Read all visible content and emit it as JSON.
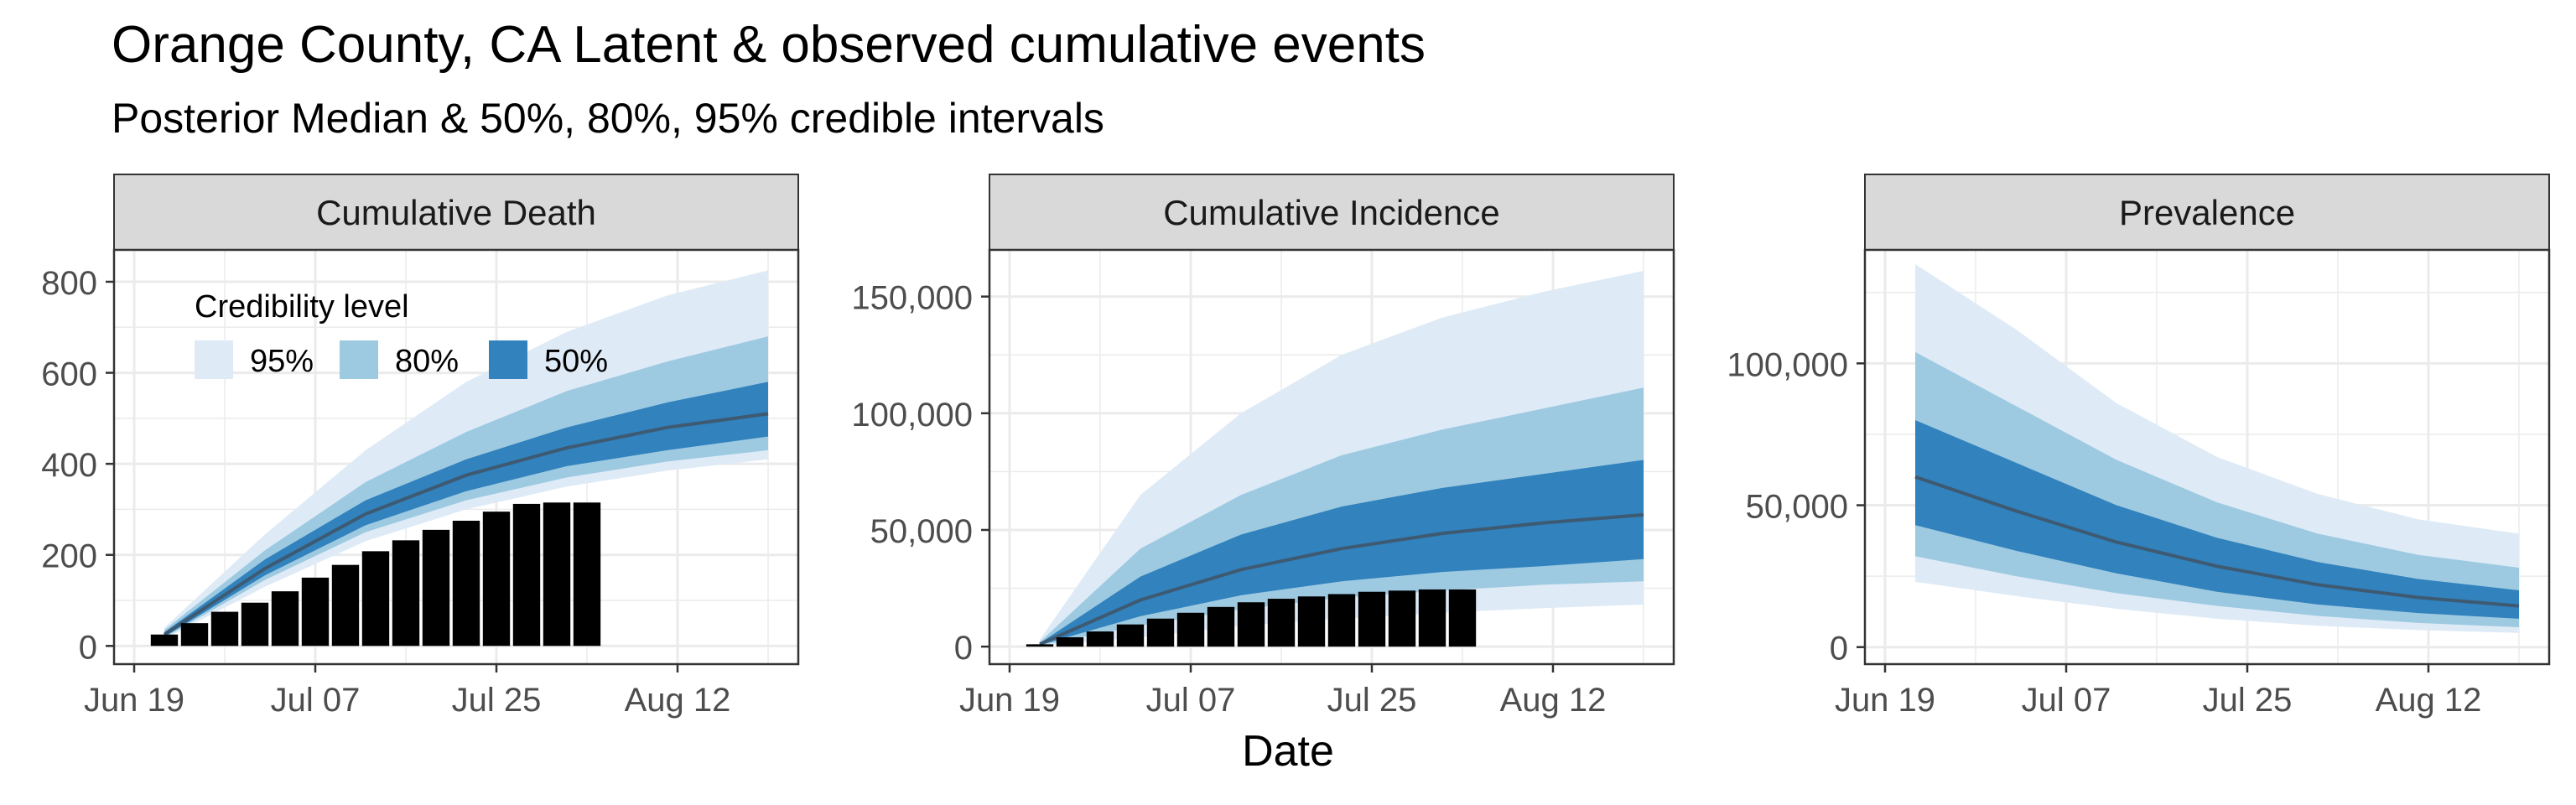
{
  "title": "Orange County, CA Latent & observed cumulative events",
  "subtitle": "Posterior Median & 50%, 80%, 95% credible intervals",
  "xlabel": "Date",
  "x_ticks": [
    {
      "date": "2020-06-19",
      "label": "Jun 19"
    },
    {
      "date": "2020-07-07",
      "label": "Jul 07"
    },
    {
      "date": "2020-07-25",
      "label": "Jul 25"
    },
    {
      "date": "2020-08-12",
      "label": "Aug 12"
    }
  ],
  "legend": {
    "title": "Credibility level",
    "items": [
      {
        "label": "95%",
        "color": "#deebf7"
      },
      {
        "label": "80%",
        "color": "#9ecae1"
      },
      {
        "label": "50%",
        "color": "#3182bd"
      }
    ]
  },
  "colors": {
    "median": "#3e5a72",
    "bars": "#000000",
    "strip": "#d9d9d9",
    "panel_border": "#333333",
    "grid": "#ebebeb"
  },
  "chart_data": [
    {
      "type": "area",
      "facet": "Cumulative Death",
      "xlim": [
        "2020-06-17",
        "2020-08-24"
      ],
      "ylim": [
        -40,
        870
      ],
      "y_ticks": [
        0,
        200,
        400,
        600,
        800
      ],
      "y_tick_labels": [
        "0",
        "200",
        "400",
        "600",
        "800"
      ],
      "series": [
        {
          "x": [
            "2020-06-22",
            "2020-07-02",
            "2020-07-12",
            "2020-07-22",
            "2020-08-01",
            "2020-08-11",
            "2020-08-21"
          ],
          "median": [
            25,
            170,
            290,
            375,
            435,
            480,
            510
          ],
          "lo50": [
            20,
            155,
            265,
            340,
            395,
            430,
            460
          ],
          "hi50": [
            30,
            190,
            320,
            410,
            480,
            535,
            580
          ],
          "lo80": [
            18,
            145,
            250,
            320,
            370,
            405,
            430
          ],
          "hi80": [
            35,
            210,
            360,
            470,
            560,
            625,
            680
          ],
          "lo95": [
            15,
            130,
            230,
            300,
            350,
            385,
            410
          ],
          "hi95": [
            40,
            245,
            430,
            580,
            690,
            770,
            825
          ]
        }
      ],
      "bars": {
        "x": [
          "2020-06-22",
          "2020-06-25",
          "2020-06-28",
          "2020-07-01",
          "2020-07-04",
          "2020-07-07",
          "2020-07-10",
          "2020-07-13",
          "2020-07-16",
          "2020-07-19",
          "2020-07-22",
          "2020-07-25",
          "2020-07-28",
          "2020-07-31",
          "2020-08-03"
        ],
        "values": [
          25,
          50,
          75,
          95,
          120,
          150,
          178,
          208,
          232,
          255,
          275,
          295,
          312,
          315,
          315
        ]
      }
    },
    {
      "type": "area",
      "facet": "Cumulative Incidence",
      "xlim": [
        "2020-06-17",
        "2020-08-24"
      ],
      "ylim": [
        -7500,
        170000
      ],
      "y_ticks": [
        0,
        50000,
        100000,
        150000
      ],
      "y_tick_labels": [
        "0",
        "50,000",
        "100,000",
        "150,000"
      ],
      "series": [
        {
          "x": [
            "2020-06-22",
            "2020-07-02",
            "2020-07-12",
            "2020-07-22",
            "2020-08-01",
            "2020-08-11",
            "2020-08-21"
          ],
          "median": [
            1000,
            20000,
            33000,
            42000,
            48500,
            53000,
            56500
          ],
          "lo50": [
            700,
            13000,
            22000,
            28000,
            32000,
            34500,
            37500
          ],
          "hi50": [
            1500,
            30000,
            48000,
            60000,
            68000,
            74000,
            80000
          ],
          "lo80": [
            500,
            9000,
            16000,
            21000,
            24000,
            26500,
            28000
          ],
          "hi80": [
            2000,
            42000,
            65000,
            82000,
            93000,
            102000,
            111000
          ],
          "lo95": [
            300,
            4000,
            9000,
            12000,
            14500,
            16500,
            18000
          ],
          "hi95": [
            3000,
            65000,
            100000,
            125000,
            141000,
            152000,
            161000
          ]
        }
      ],
      "bars": {
        "x": [
          "2020-06-22",
          "2020-06-25",
          "2020-06-28",
          "2020-07-01",
          "2020-07-04",
          "2020-07-07",
          "2020-07-10",
          "2020-07-13",
          "2020-07-16",
          "2020-07-19",
          "2020-07-22",
          "2020-07-25",
          "2020-07-28",
          "2020-07-31",
          "2020-08-03"
        ],
        "values": [
          1000,
          4000,
          6500,
          9500,
          12000,
          14500,
          17000,
          19000,
          20500,
          21500,
          22500,
          23500,
          24000,
          24500,
          24500
        ]
      }
    },
    {
      "type": "area",
      "facet": "Prevalence",
      "xlim": [
        "2020-06-17",
        "2020-08-24"
      ],
      "ylim": [
        -6000,
        140000
      ],
      "y_ticks": [
        0,
        50000,
        100000
      ],
      "y_tick_labels": [
        "0",
        "50,000",
        "100,000"
      ],
      "series": [
        {
          "x": [
            "2020-06-22",
            "2020-07-02",
            "2020-07-12",
            "2020-07-22",
            "2020-08-01",
            "2020-08-11",
            "2020-08-21"
          ],
          "median": [
            60000,
            48000,
            37000,
            28500,
            22000,
            17500,
            14500
          ],
          "lo50": [
            43000,
            34000,
            26000,
            19500,
            15000,
            12000,
            10000
          ],
          "hi50": [
            80000,
            65000,
            50000,
            38500,
            30000,
            24000,
            20000
          ],
          "lo80": [
            32000,
            25000,
            19000,
            14500,
            11000,
            8500,
            7000
          ],
          "hi80": [
            104000,
            85000,
            66000,
            51000,
            40000,
            32500,
            28000
          ],
          "lo95": [
            23000,
            18000,
            13500,
            10000,
            7500,
            6000,
            5000
          ],
          "hi95": [
            135000,
            112000,
            86000,
            67000,
            54000,
            45000,
            40000
          ]
        }
      ]
    }
  ]
}
